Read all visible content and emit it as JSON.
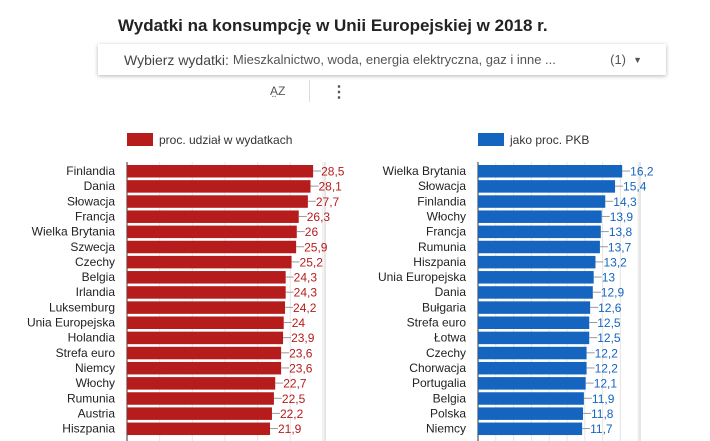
{
  "title": "Wydatki na konsumpcję w Unii Europejskiej w 2018 r.",
  "selector": {
    "label": "Wybierz wydatki:",
    "value": "Mieszkalnictwo, woda, energia elektryczna, gaz i inne ...",
    "count": "(1)",
    "icon": "dropdown-arrow"
  },
  "toolbar": {
    "sort_label": "A̤Z",
    "sort_icon": "sort-az-icon",
    "more_icon": "more-vert-icon"
  },
  "chart_data": [
    {
      "type": "bar",
      "orientation": "horizontal",
      "legend": "proc. udział w wydatkach",
      "color": "#b71c1c",
      "label_color": "#b71c1c",
      "xlim": [
        0,
        30
      ],
      "grid": true,
      "categories": [
        "Finlandia",
        "Dania",
        "Słowacja",
        "Francja",
        "Wielka Brytania",
        "Szwecja",
        "Czechy",
        "Belgia",
        "Irlandia",
        "Luksemburg",
        "Unia Europejska",
        "Holandia",
        "Strefa euro",
        "Niemcy",
        "Włochy",
        "Rumunia",
        "Austria",
        "Hiszpania"
      ],
      "values": [
        28.5,
        28.1,
        27.7,
        26.3,
        26,
        25.9,
        25.2,
        24.3,
        24.3,
        24.2,
        24,
        23.9,
        23.6,
        23.6,
        22.7,
        22.5,
        22.2,
        21.9
      ]
    },
    {
      "type": "bar",
      "orientation": "horizontal",
      "legend": "jako proc. PKB",
      "color": "#1565c0",
      "label_color": "#1565c0",
      "xlim": [
        0,
        18
      ],
      "grid": true,
      "categories": [
        "Wielka Brytania",
        "Słowacja",
        "Finlandia",
        "Włochy",
        "Francja",
        "Rumunia",
        "Hiszpania",
        "Unia Europejska",
        "Dania",
        "Bułgaria",
        "Strefa euro",
        "Łotwa",
        "Czechy",
        "Chorwacja",
        "Portugalia",
        "Belgia",
        "Polska",
        "Niemcy"
      ],
      "values": [
        16.2,
        15.4,
        14.3,
        13.9,
        13.8,
        13.7,
        13.2,
        13,
        12.9,
        12.6,
        12.5,
        12.5,
        12.2,
        12.2,
        12.1,
        11.9,
        11.8,
        11.7
      ]
    }
  ]
}
